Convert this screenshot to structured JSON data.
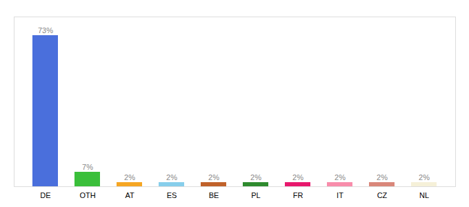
{
  "chart_data": {
    "type": "bar",
    "categories": [
      "DE",
      "OTH",
      "AT",
      "ES",
      "BE",
      "PL",
      "FR",
      "IT",
      "CZ",
      "NL"
    ],
    "values": [
      73,
      7,
      2,
      2,
      2,
      2,
      2,
      2,
      2,
      2
    ],
    "value_labels": [
      "73%",
      "7%",
      "2%",
      "2%",
      "2%",
      "2%",
      "2%",
      "2%",
      "2%",
      "2%"
    ],
    "colors": [
      "#4a6fdc",
      "#3abf3a",
      "#f5a623",
      "#87ceeb",
      "#c0622a",
      "#2e8b2e",
      "#e8186d",
      "#f88dab",
      "#d9877a",
      "#f5f0d8"
    ],
    "ylim": [
      0,
      82
    ],
    "data_labels": true,
    "tick_labels": "x"
  }
}
